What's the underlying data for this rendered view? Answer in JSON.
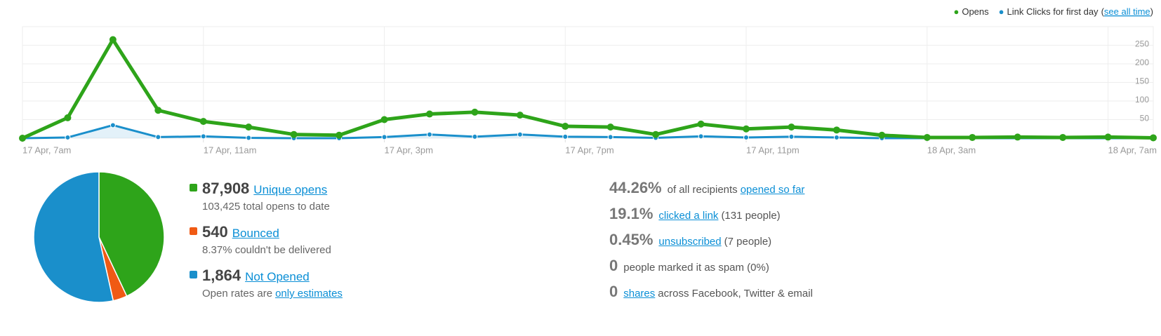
{
  "chart_data": [
    {
      "type": "line",
      "categories": [
        "17 Apr, 7am",
        null,
        null,
        null,
        "17 Apr, 11am",
        null,
        null,
        null,
        "17 Apr, 3pm",
        null,
        null,
        null,
        "17 Apr, 7pm",
        null,
        null,
        null,
        "17 Apr, 11pm",
        null,
        null,
        null,
        "18 Apr, 3am",
        null,
        null,
        null,
        "18 Apr, 7am",
        null
      ],
      "series": [
        {
          "name": "Opens",
          "color": "#2ea41a",
          "values": [
            0,
            55,
            265,
            75,
            45,
            30,
            10,
            8,
            50,
            65,
            70,
            62,
            32,
            30,
            10,
            38,
            25,
            30,
            22,
            8,
            2,
            2,
            3,
            2,
            3,
            1
          ]
        },
        {
          "name": "Link Clicks for first day",
          "color": "#1a8fcb",
          "values": [
            0,
            2,
            35,
            3,
            5,
            1,
            0,
            0,
            3,
            10,
            4,
            10,
            4,
            3,
            1,
            5,
            2,
            4,
            2,
            0,
            0,
            0,
            0,
            0,
            0,
            0
          ]
        }
      ],
      "legend_note": {
        "open": "(",
        "link": "see all time",
        "close": ")"
      },
      "ylim": [
        0,
        300
      ],
      "yticks": [
        50,
        100,
        150,
        200,
        250
      ],
      "grid": true,
      "legend": "top-right"
    },
    {
      "type": "pie",
      "values": [
        43,
        3.5,
        53.5
      ],
      "colors": [
        "#2ea41a",
        "#f05a14",
        "#1a8fcb"
      ]
    }
  ],
  "summary": [
    {
      "number": "87,908",
      "link": "Unique opens",
      "note": "103,425 total opens to date"
    },
    {
      "number": "540",
      "link": "Bounced",
      "note": "8.37% couldn't be delivered"
    },
    {
      "number": "1,864",
      "link": "Not Opened",
      "note": "Open rates are",
      "note_link": "only estimates"
    }
  ],
  "stats": [
    {
      "number": "44.26%",
      "before": "of all recipients",
      "link": "opened so far"
    },
    {
      "number": "19.1%",
      "link": "clicked a link",
      "after": "(131 people)"
    },
    {
      "number": "0.45%",
      "link": "unsubscribed",
      "after": "(7 people)"
    },
    {
      "number": "0",
      "before": "people marked it as spam (0%)"
    },
    {
      "number": "0",
      "link": "shares",
      "after": "across Facebook, Twitter & email"
    }
  ]
}
